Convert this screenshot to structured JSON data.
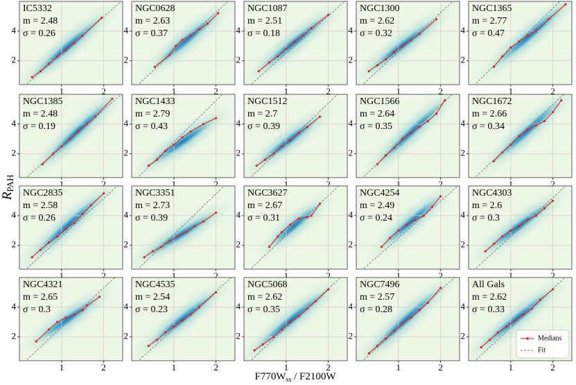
{
  "chart_data": {
    "type": "line",
    "y_label": {
      "main": "R",
      "sub": "PAH"
    },
    "x_label": {
      "pre": "F770W",
      "sub": "ss",
      "post": " / F2100W"
    },
    "xlim": [
      0,
      2.45
    ],
    "ylim": [
      0.4,
      6.0
    ],
    "xticks": [
      1,
      2
    ],
    "yticks": [
      2,
      4
    ],
    "grid": true,
    "series": [
      {
        "name": "Medians",
        "color": "#d62728"
      },
      {
        "name": "Fit",
        "color": "#7a7a7a"
      }
    ],
    "legend": "lower right",
    "panels": [
      {
        "name": "IC5332",
        "m": {
          "value": 2.48,
          "label": "m = 2.48"
        },
        "sigma": {
          "value": 0.26,
          "label": "σ = 0.26"
        },
        "x": [
          0.3,
          0.5,
          0.7,
          0.9,
          1.1,
          1.3,
          1.5,
          1.95
        ],
        "values": [
          0.9,
          1.3,
          1.8,
          2.3,
          2.7,
          3.2,
          3.7,
          4.9
        ]
      },
      {
        "name": "NGC0628",
        "m": {
          "value": 2.63,
          "label": "m = 2.63"
        },
        "sigma": {
          "value": 0.37,
          "label": "σ = 0.37"
        },
        "x": [
          0.55,
          0.9,
          1.05,
          1.2,
          1.4,
          1.6,
          1.8,
          2.05
        ],
        "values": [
          1.6,
          2.4,
          3.0,
          3.4,
          3.7,
          4.1,
          4.5,
          5.2
        ]
      },
      {
        "name": "NGC1087",
        "m": {
          "value": 2.51,
          "label": "m = 2.51"
        },
        "sigma": {
          "value": 0.18,
          "label": "σ = 0.18"
        },
        "x": [
          0.35,
          0.6,
          0.8,
          1.0,
          1.2,
          1.4,
          1.6,
          2.0
        ],
        "values": [
          1.3,
          1.9,
          2.3,
          2.8,
          3.3,
          3.7,
          4.2,
          5.1
        ]
      },
      {
        "name": "NGC1300",
        "m": {
          "value": 2.62,
          "label": "m = 2.62"
        },
        "sigma": {
          "value": 0.32,
          "label": "σ = 0.32"
        },
        "x": [
          0.3,
          0.5,
          0.7,
          0.9,
          1.1,
          1.3,
          1.5,
          1.9
        ],
        "values": [
          1.3,
          1.7,
          2.1,
          2.6,
          3.0,
          3.4,
          3.8,
          4.8
        ]
      },
      {
        "name": "NGC1365",
        "m": {
          "value": 2.77,
          "label": "m = 2.77"
        },
        "sigma": {
          "value": 0.47,
          "label": "σ = 0.47"
        },
        "x": [
          0.6,
          0.8,
          1.0,
          1.2,
          1.4,
          1.6,
          1.9,
          2.3
        ],
        "values": [
          1.6,
          2.3,
          2.9,
          3.3,
          3.7,
          4.0,
          4.8,
          5.8
        ]
      },
      {
        "name": "NGC1385",
        "m": {
          "value": 2.48,
          "label": "m = 2.48"
        },
        "sigma": {
          "value": 0.19,
          "label": "σ = 0.19"
        },
        "x": [
          0.55,
          0.8,
          1.0,
          1.2,
          1.4,
          1.6,
          1.8,
          2.2
        ],
        "values": [
          1.3,
          2.0,
          2.5,
          3.0,
          3.5,
          4.0,
          4.5,
          5.7
        ]
      },
      {
        "name": "NGC1433",
        "m": {
          "value": 2.79,
          "label": "m = 2.79"
        },
        "sigma": {
          "value": 0.43,
          "label": "σ = 0.43"
        },
        "x": [
          0.4,
          0.6,
          0.8,
          1.0,
          1.2,
          1.4,
          1.7,
          2.0
        ],
        "values": [
          1.2,
          1.6,
          2.2,
          2.6,
          3.1,
          3.5,
          4.0,
          4.4
        ]
      },
      {
        "name": "NGC1512",
        "m": {
          "value": 2.7,
          "label": "m = 2.7"
        },
        "sigma": {
          "value": 0.39,
          "label": "σ = 0.39"
        },
        "x": [
          0.3,
          0.5,
          0.7,
          0.9,
          1.1,
          1.3,
          1.5,
          1.8
        ],
        "values": [
          1.2,
          1.6,
          2.0,
          2.5,
          2.9,
          3.4,
          3.8,
          4.5
        ]
      },
      {
        "name": "NGC1566",
        "m": {
          "value": 2.64,
          "label": "m = 2.64"
        },
        "sigma": {
          "value": 0.35,
          "label": "σ = 0.35"
        },
        "x": [
          0.5,
          0.7,
          0.9,
          1.1,
          1.3,
          1.5,
          1.7,
          1.9,
          2.1
        ],
        "values": [
          1.3,
          1.9,
          2.4,
          3.0,
          3.4,
          3.8,
          4.2,
          4.7,
          5.6
        ]
      },
      {
        "name": "NGC1672",
        "m": {
          "value": 2.66,
          "label": "m = 2.66"
        },
        "sigma": {
          "value": 0.34,
          "label": "σ = 0.34"
        },
        "x": [
          0.6,
          0.8,
          1.0,
          1.2,
          1.4,
          1.6,
          1.8,
          2.0,
          2.2
        ],
        "values": [
          1.5,
          2.1,
          2.6,
          3.2,
          3.6,
          3.9,
          4.2,
          4.8,
          5.6
        ]
      },
      {
        "name": "NGC2835",
        "m": {
          "value": 2.58,
          "label": "m = 2.58"
        },
        "sigma": {
          "value": 0.26,
          "label": "σ = 0.26"
        },
        "x": [
          0.3,
          0.5,
          0.7,
          0.9,
          1.1,
          1.3,
          1.5,
          1.7,
          2.0
        ],
        "values": [
          1.2,
          1.7,
          2.2,
          2.6,
          3.1,
          3.5,
          4.1,
          4.7,
          5.5
        ]
      },
      {
        "name": "NGC3351",
        "m": {
          "value": 2.73,
          "label": "m = 2.73"
        },
        "sigma": {
          "value": 0.39,
          "label": "σ = 0.39"
        },
        "x": [
          0.3,
          0.5,
          0.7,
          0.9,
          1.1,
          1.3,
          1.5,
          1.7,
          2.0
        ],
        "values": [
          1.2,
          1.6,
          1.9,
          2.3,
          2.6,
          2.9,
          3.3,
          3.6,
          4.2
        ]
      },
      {
        "name": "NGC3627",
        "m": {
          "value": 2.67,
          "label": "m = 2.67"
        },
        "sigma": {
          "value": 0.31,
          "label": "σ = 0.31"
        },
        "x": [
          0.6,
          0.8,
          0.9,
          1.1,
          1.3,
          1.5,
          1.6,
          1.8
        ],
        "values": [
          1.9,
          2.6,
          2.9,
          3.4,
          3.8,
          3.9,
          4.0,
          4.8
        ]
      },
      {
        "name": "NGC4254",
        "m": {
          "value": 2.49,
          "label": "m = 2.49"
        },
        "sigma": {
          "value": 0.24,
          "label": "σ = 0.24"
        },
        "x": [
          0.6,
          0.8,
          1.0,
          1.2,
          1.4,
          1.6,
          1.8,
          2.0
        ],
        "values": [
          1.9,
          2.5,
          3.0,
          3.4,
          3.7,
          4.0,
          4.6,
          5.3
        ]
      },
      {
        "name": "NGC4303",
        "m": {
          "value": 2.6,
          "label": "m = 2.6"
        },
        "sigma": {
          "value": 0.3,
          "label": "σ = 0.3"
        },
        "x": [
          0.4,
          0.6,
          0.8,
          1.0,
          1.2,
          1.4,
          1.6,
          1.8,
          2.0
        ],
        "values": [
          1.6,
          2.1,
          2.6,
          3.0,
          3.3,
          3.7,
          4.0,
          4.5,
          5.0
        ]
      },
      {
        "name": "NGC4321",
        "m": {
          "value": 2.65,
          "label": "m = 2.65"
        },
        "sigma": {
          "value": 0.3,
          "label": "σ = 0.3"
        },
        "x": [
          0.4,
          0.7,
          0.9,
          1.1,
          1.3,
          1.5,
          1.6,
          1.9
        ],
        "values": [
          1.7,
          2.5,
          3.0,
          3.3,
          3.5,
          3.8,
          4.1,
          4.7
        ]
      },
      {
        "name": "NGC4535",
        "m": {
          "value": 2.54,
          "label": "m = 2.54"
        },
        "sigma": {
          "value": 0.23,
          "label": "σ = 0.23"
        },
        "x": [
          0.4,
          0.6,
          0.8,
          1.0,
          1.2,
          1.4,
          1.6,
          2.0
        ],
        "values": [
          1.4,
          1.8,
          2.3,
          2.7,
          3.1,
          3.5,
          4.0,
          5.0
        ]
      },
      {
        "name": "NGC5068",
        "m": {
          "value": 2.62,
          "label": "m = 2.62"
        },
        "sigma": {
          "value": 0.35,
          "label": "σ = 0.35"
        },
        "x": [
          0.25,
          0.45,
          0.7,
          0.9,
          1.1,
          1.3,
          1.5,
          1.7,
          2.0
        ],
        "values": [
          1.1,
          1.5,
          2.0,
          2.5,
          3.0,
          3.4,
          3.9,
          4.4,
          5.2
        ]
      },
      {
        "name": "NGC7496",
        "m": {
          "value": 2.57,
          "label": "m = 2.57"
        },
        "sigma": {
          "value": 0.28,
          "label": "σ = 0.28"
        },
        "x": [
          0.3,
          0.5,
          0.7,
          0.9,
          1.1,
          1.3,
          1.5,
          1.7,
          2.0
        ],
        "values": [
          0.9,
          1.4,
          1.9,
          2.4,
          2.9,
          3.3,
          3.8,
          4.3,
          5.3
        ]
      },
      {
        "name": "All Gals",
        "m": {
          "value": 2.62,
          "label": "m = 2.62"
        },
        "sigma": {
          "value": 0.33,
          "label": "σ = 0.33"
        },
        "x": [
          0.3,
          0.5,
          0.7,
          0.9,
          1.1,
          1.3,
          1.5,
          1.7,
          2.0
        ],
        "values": [
          1.3,
          1.8,
          2.3,
          2.7,
          3.1,
          3.5,
          3.9,
          4.5,
          5.2
        ]
      }
    ]
  }
}
